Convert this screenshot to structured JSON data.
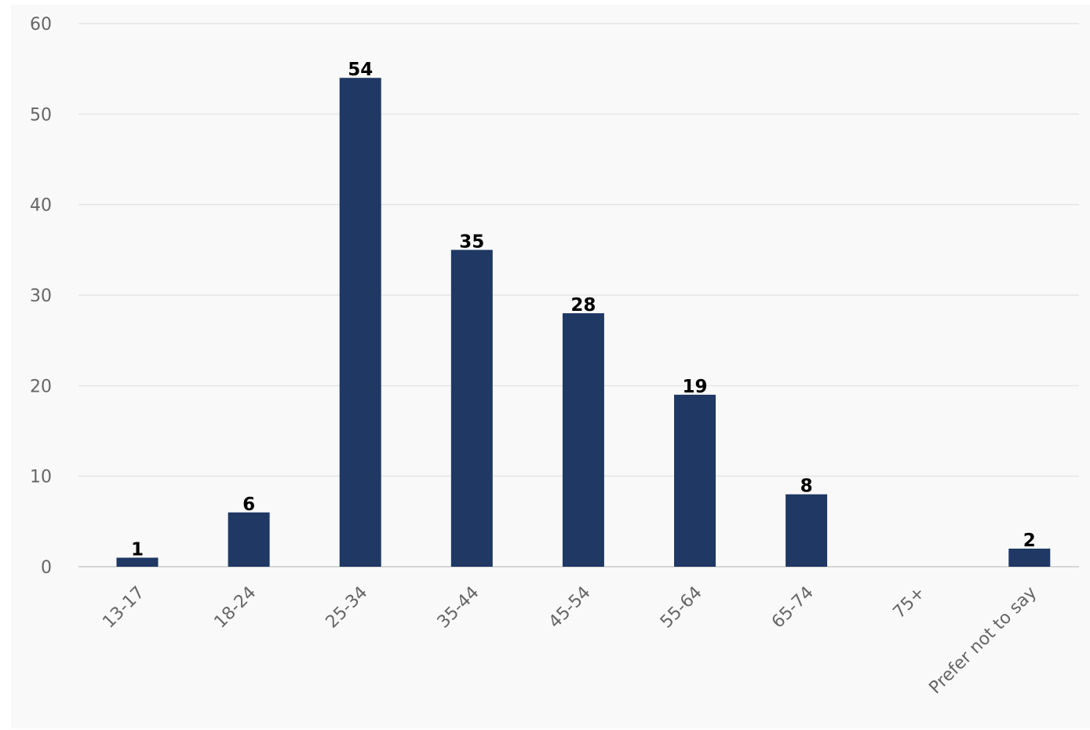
{
  "chart_data": {
    "type": "bar",
    "categories": [
      "13-17",
      "18-24",
      "25-34",
      "35-44",
      "45-54",
      "55-64",
      "65-74",
      "75+",
      "Prefer not to say"
    ],
    "values": [
      1,
      6,
      54,
      35,
      28,
      19,
      8,
      0,
      2
    ],
    "data_labels": [
      "1",
      "6",
      "54",
      "35",
      "28",
      "19",
      "8",
      "",
      "2"
    ],
    "y_ticks": [
      "0",
      "10",
      "20",
      "30",
      "40",
      "50",
      "60"
    ],
    "ylim": [
      0,
      60
    ],
    "title": "",
    "xlabel": "",
    "ylabel": "",
    "grid": true,
    "legend": "none",
    "colors": {
      "bar": "#1f3864",
      "background": "#f9f9f9",
      "grid": "#e6e6e6",
      "tick_text": "#666666",
      "data_label": "#000000"
    }
  }
}
